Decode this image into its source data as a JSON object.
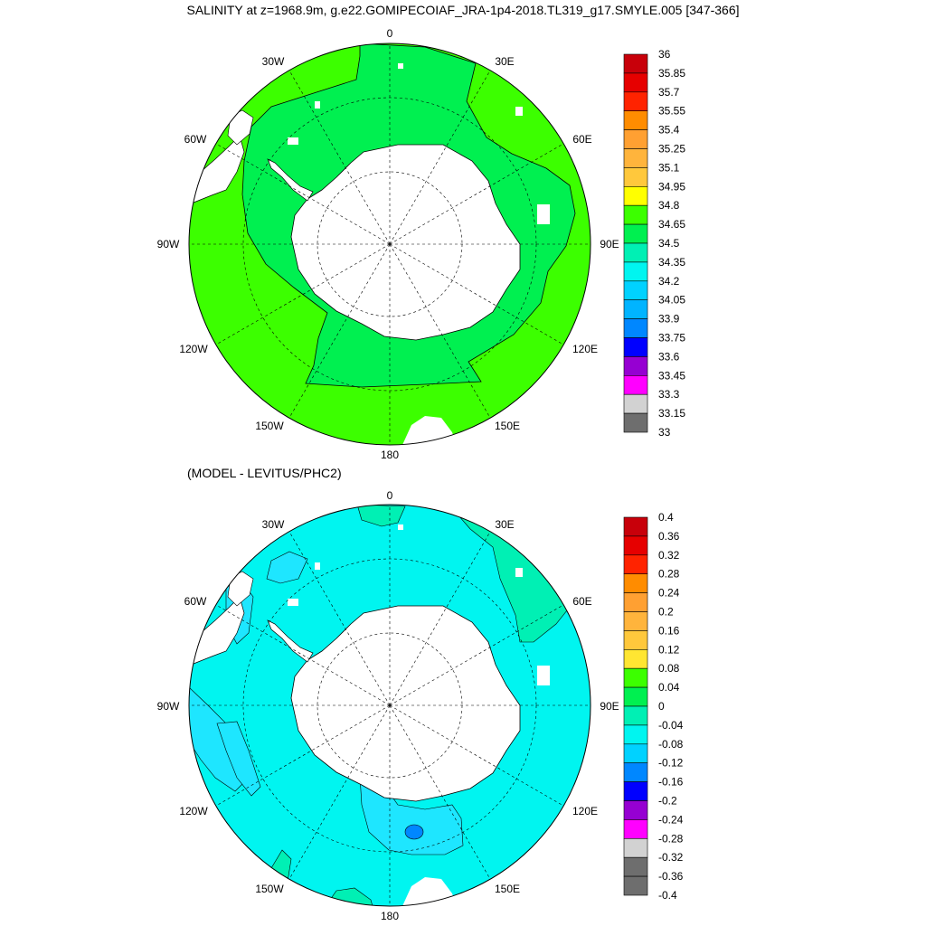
{
  "title": "SALINITY at z=1968.9m, g.e22.GOMIPECOIAF_JRA-1p4-2018.TL319_g17.SMYLE.005 [347-366]",
  "subtitle": "(MODEL - LEVITUS/PHC2)",
  "longitude_labels": {
    "lon_0": "0",
    "lon_30e": "30E",
    "lon_60e": "60E",
    "lon_90e": "90E",
    "lon_120e": "120E",
    "lon_150e": "150E",
    "lon_180": "180",
    "lon_150w": "150W",
    "lon_120w": "120W",
    "lon_90w": "90W",
    "lon_60w": "60W",
    "lon_30w": "30W"
  },
  "top_map": {
    "name": "salinity",
    "colorbar_labels": [
      "36",
      "35.85",
      "35.7",
      "35.55",
      "35.4",
      "35.25",
      "35.1",
      "34.95",
      "34.8",
      "34.65",
      "34.5",
      "34.35",
      "34.2",
      "34.05",
      "33.9",
      "33.75",
      "33.6",
      "33.45",
      "33.3",
      "33.15",
      "33"
    ],
    "colorbar_colors": [
      "#c8000a",
      "#e60000",
      "#ff2300",
      "#ff8c00",
      "#ffa032",
      "#ffb43c",
      "#ffc83c",
      "#ffff00",
      "#3cff00",
      "#00f050",
      "#00f0b4",
      "#00f5f0",
      "#00d2ff",
      "#00b4ff",
      "#0087ff",
      "#0000ff",
      "#9600d2",
      "#ff00ff",
      "#d2d2d2",
      "#6e6e6e"
    ],
    "dominant_field_color": "#3cff00",
    "secondary_field_color": "#00f050"
  },
  "bottom_map": {
    "name": "difference",
    "colorbar_labels": [
      "0.4",
      "0.36",
      "0.32",
      "0.28",
      "0.24",
      "0.2",
      "0.16",
      "0.12",
      "0.08",
      "0.04",
      "0",
      "-0.04",
      "-0.08",
      "-0.12",
      "-0.16",
      "-0.2",
      "-0.24",
      "-0.28",
      "-0.32",
      "-0.36",
      "-0.4"
    ],
    "colorbar_colors": [
      "#c8000a",
      "#e60000",
      "#ff2300",
      "#ff8c00",
      "#ffa032",
      "#ffb43c",
      "#ffc83c",
      "#ffe632",
      "#3cff00",
      "#00f050",
      "#00f0b4",
      "#00f5f0",
      "#00d2ff",
      "#0087ff",
      "#0000ff",
      "#9600d2",
      "#ff00ff",
      "#d2d2d2",
      "#6e6e6e",
      "#6e6e6e"
    ],
    "dominant_field_color": "#00f5f0",
    "secondary_field_color": "#1ee6ff"
  }
}
